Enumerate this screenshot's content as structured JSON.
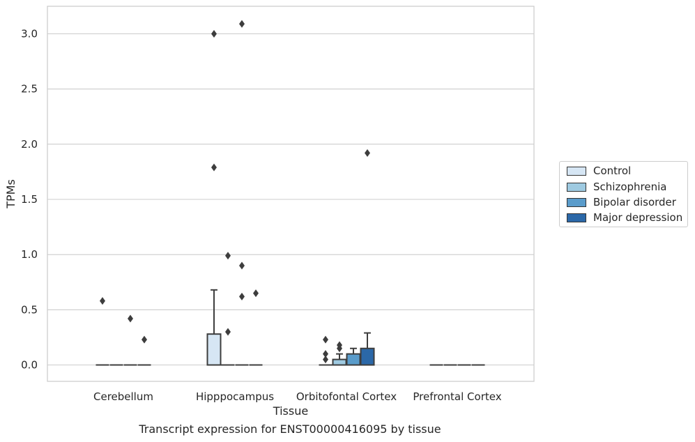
{
  "caption": "Transcript expression for ENST00000416095 by tissue",
  "chart_data": {
    "type": "box",
    "xlabel": "Tissue",
    "ylabel": "TPMs",
    "categories": [
      "Cerebellum",
      "Hipppocampus",
      "Orbitofontal Cortex",
      "Prefrontal Cortex"
    ],
    "ylim": [
      -0.15,
      3.25
    ],
    "yticks": [
      "0.0",
      "0.5",
      "1.0",
      "1.5",
      "2.0",
      "2.5",
      "3.0"
    ],
    "grid": true,
    "legend_position": "right",
    "series": [
      {
        "name": "Control",
        "color": "#d6e6f4",
        "boxes": [
          {
            "category": "Cerebellum",
            "q1": 0,
            "median": 0,
            "q3": 0,
            "whisker_low": 0,
            "whisker_high": 0,
            "outliers": [
              0.58
            ]
          },
          {
            "category": "Hipppocampus",
            "q1": 0,
            "median": 0,
            "q3": 0.28,
            "whisker_low": 0,
            "whisker_high": 0.68,
            "outliers": [
              1.79,
              3.0
            ]
          },
          {
            "category": "Orbitofontal Cortex",
            "q1": 0,
            "median": 0,
            "q3": 0,
            "whisker_low": 0,
            "whisker_high": 0,
            "outliers": [
              0.05,
              0.1,
              0.23
            ]
          },
          {
            "category": "Prefrontal Cortex",
            "q1": 0,
            "median": 0,
            "q3": 0,
            "whisker_low": 0,
            "whisker_high": 0,
            "outliers": []
          }
        ]
      },
      {
        "name": "Schizophrenia",
        "color": "#9ecae1",
        "boxes": [
          {
            "category": "Cerebellum",
            "q1": 0,
            "median": 0,
            "q3": 0,
            "whisker_low": 0,
            "whisker_high": 0,
            "outliers": []
          },
          {
            "category": "Hipppocampus",
            "q1": 0,
            "median": 0,
            "q3": 0,
            "whisker_low": 0,
            "whisker_high": 0,
            "outliers": [
              0.3,
              0.99
            ]
          },
          {
            "category": "Orbitofontal Cortex",
            "q1": 0,
            "median": 0,
            "q3": 0.05,
            "whisker_low": 0,
            "whisker_high": 0.1,
            "outliers": [
              0.15,
              0.18
            ]
          },
          {
            "category": "Prefrontal Cortex",
            "q1": 0,
            "median": 0,
            "q3": 0,
            "whisker_low": 0,
            "whisker_high": 0,
            "outliers": []
          }
        ]
      },
      {
        "name": "Bipolar disorder",
        "color": "#5a9ccb",
        "boxes": [
          {
            "category": "Cerebellum",
            "q1": 0,
            "median": 0,
            "q3": 0,
            "whisker_low": 0,
            "whisker_high": 0,
            "outliers": [
              0.42
            ]
          },
          {
            "category": "Hipppocampus",
            "q1": 0,
            "median": 0,
            "q3": 0,
            "whisker_low": 0,
            "whisker_high": 0,
            "outliers": [
              0.62,
              0.9,
              3.09
            ]
          },
          {
            "category": "Orbitofontal Cortex",
            "q1": 0,
            "median": 0,
            "q3": 0.1,
            "whisker_low": 0,
            "whisker_high": 0.15,
            "outliers": []
          },
          {
            "category": "Prefrontal Cortex",
            "q1": 0,
            "median": 0,
            "q3": 0,
            "whisker_low": 0,
            "whisker_high": 0,
            "outliers": []
          }
        ]
      },
      {
        "name": "Major depression",
        "color": "#2b68a8",
        "boxes": [
          {
            "category": "Cerebellum",
            "q1": 0,
            "median": 0,
            "q3": 0,
            "whisker_low": 0,
            "whisker_high": 0,
            "outliers": [
              0.23
            ]
          },
          {
            "category": "Hipppocampus",
            "q1": 0,
            "median": 0,
            "q3": 0,
            "whisker_low": 0,
            "whisker_high": 0,
            "outliers": [
              0.65
            ]
          },
          {
            "category": "Orbitofontal Cortex",
            "q1": 0,
            "median": 0,
            "q3": 0.15,
            "whisker_low": 0,
            "whisker_high": 0.29,
            "outliers": [
              1.92
            ]
          },
          {
            "category": "Prefrontal Cortex",
            "q1": 0,
            "median": 0,
            "q3": 0,
            "whisker_low": 0,
            "whisker_high": 0,
            "outliers": []
          }
        ]
      }
    ]
  }
}
